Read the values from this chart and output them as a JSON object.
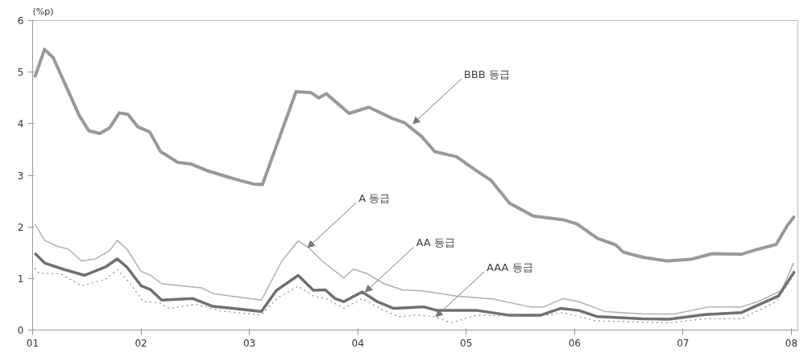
{
  "chart_data": {
    "type": "line",
    "ylabel": "(%p)",
    "xlim": [
      2001,
      2008.06
    ],
    "ylim": [
      0,
      6
    ],
    "xticks": [
      {
        "value": 2001,
        "label": "01"
      },
      {
        "value": 2002,
        "label": "02"
      },
      {
        "value": 2003,
        "label": "03"
      },
      {
        "value": 2004,
        "label": "04"
      },
      {
        "value": 2005,
        "label": "05"
      },
      {
        "value": 2006,
        "label": "06"
      },
      {
        "value": 2007,
        "label": "07"
      },
      {
        "value": 2008,
        "label": "08"
      }
    ],
    "yticks": [
      0,
      1,
      2,
      3,
      4,
      5,
      6
    ],
    "grid": false,
    "series": [
      {
        "color": "#999999",
        "line_style": "solid",
        "x": [
          2001.02,
          2001.11,
          2001.19,
          2001.43,
          2001.52,
          2001.62,
          2001.71,
          2001.8,
          2001.88,
          2001.97,
          2002.08,
          2002.18,
          2002.34,
          2002.46,
          2002.61,
          2002.78,
          2002.91,
          2003.04,
          2003.12,
          2003.43,
          2003.57,
          2003.64,
          2003.71,
          2003.92,
          2004.1,
          2004.32,
          2004.43,
          2004.59,
          2004.71,
          2004.91,
          2005.06,
          2005.23,
          2005.4,
          2005.62,
          2005.89,
          2006.02,
          2006.21,
          2006.38,
          2006.45,
          2006.63,
          2006.85,
          2007.07,
          2007.27,
          2007.54,
          2007.68,
          2007.86,
          2007.96,
          2008.03
        ],
        "values": [
          4.9,
          5.44,
          5.28,
          4.16,
          3.86,
          3.81,
          3.92,
          4.21,
          4.18,
          3.94,
          3.84,
          3.46,
          3.25,
          3.22,
          3.09,
          2.98,
          2.9,
          2.83,
          2.82,
          4.62,
          4.6,
          4.5,
          4.58,
          4.2,
          4.32,
          4.1,
          4.02,
          3.75,
          3.46,
          3.36,
          3.14,
          2.9,
          2.46,
          2.21,
          2.14,
          2.06,
          1.78,
          1.65,
          1.51,
          1.41,
          1.34,
          1.37,
          1.48,
          1.47,
          1.56,
          1.66,
          2.02,
          2.21
        ]
      },
      {
        "color": "#b0b0b0",
        "line_style": "solid",
        "x": [
          2001.02,
          2001.11,
          2001.23,
          2001.33,
          2001.45,
          2001.58,
          2001.71,
          2001.78,
          2001.87,
          2002.0,
          2002.09,
          2002.19,
          2002.41,
          2002.56,
          2002.66,
          2002.83,
          2003.11,
          2003.3,
          2003.45,
          2003.55,
          2003.67,
          2003.87,
          2003.96,
          2004.09,
          2004.24,
          2004.41,
          2004.6,
          2004.91,
          2005.25,
          2005.59,
          2005.72,
          2005.89,
          2006.04,
          2006.28,
          2006.63,
          2006.92,
          2007.24,
          2007.54,
          2007.69,
          2007.91,
          2008.02
        ],
        "values": [
          2.06,
          1.74,
          1.62,
          1.57,
          1.34,
          1.38,
          1.54,
          1.74,
          1.57,
          1.14,
          1.06,
          0.9,
          0.85,
          0.82,
          0.71,
          0.66,
          0.58,
          1.34,
          1.73,
          1.59,
          1.34,
          1.01,
          1.18,
          1.09,
          0.9,
          0.78,
          0.76,
          0.66,
          0.6,
          0.45,
          0.45,
          0.61,
          0.55,
          0.36,
          0.31,
          0.31,
          0.45,
          0.45,
          0.55,
          0.77,
          1.3
        ]
      },
      {
        "color": "#707070",
        "line_style": "solid",
        "x": [
          2001.02,
          2001.11,
          2001.28,
          2001.48,
          2001.67,
          2001.78,
          2001.87,
          2002.0,
          2002.09,
          2002.19,
          2002.48,
          2002.66,
          2002.85,
          2003.11,
          2003.25,
          2003.45,
          2003.59,
          2003.7,
          2003.79,
          2003.87,
          2004.04,
          2004.18,
          2004.33,
          2004.61,
          2004.73,
          2005.1,
          2005.39,
          2005.69,
          2005.87,
          2006.04,
          2006.21,
          2006.63,
          2006.87,
          2007.2,
          2007.54,
          2007.88,
          2008.03
        ],
        "values": [
          1.49,
          1.3,
          1.18,
          1.06,
          1.22,
          1.38,
          1.22,
          0.86,
          0.78,
          0.58,
          0.61,
          0.46,
          0.42,
          0.36,
          0.77,
          1.06,
          0.77,
          0.78,
          0.61,
          0.55,
          0.74,
          0.55,
          0.42,
          0.45,
          0.38,
          0.38,
          0.29,
          0.29,
          0.42,
          0.38,
          0.26,
          0.22,
          0.21,
          0.3,
          0.34,
          0.66,
          1.14
        ]
      },
      {
        "color": "#888888",
        "line_style": "dotted",
        "x": [
          2001.02,
          2001.06,
          2001.26,
          2001.45,
          2001.67,
          2001.78,
          2001.89,
          2002.02,
          2002.17,
          2002.26,
          2002.51,
          2002.74,
          2003.11,
          2003.25,
          2003.45,
          2003.59,
          2003.72,
          2003.87,
          2004.04,
          2004.24,
          2004.38,
          2004.56,
          2004.71,
          2004.86,
          2005.1,
          2005.65,
          2005.89,
          2006.19,
          2006.87,
          2007.2,
          2007.54,
          2007.86,
          2008.03
        ],
        "values": [
          1.2,
          1.1,
          1.09,
          0.86,
          0.98,
          1.17,
          0.93,
          0.55,
          0.53,
          0.42,
          0.5,
          0.37,
          0.29,
          0.61,
          0.85,
          0.66,
          0.6,
          0.42,
          0.61,
          0.38,
          0.26,
          0.29,
          0.26,
          0.14,
          0.29,
          0.26,
          0.34,
          0.18,
          0.14,
          0.22,
          0.22,
          0.55,
          1.09
        ]
      }
    ],
    "annotations": [
      {
        "text": "BBB 등급",
        "x": 2004.51,
        "y": 4.0
      },
      {
        "text": "A 등급",
        "x": 2003.54,
        "y": 1.6
      },
      {
        "text": "AA 등급",
        "x": 2004.07,
        "y": 0.74
      },
      {
        "text": "AAA 등급",
        "x": 2004.72,
        "y": 0.26
      }
    ]
  }
}
